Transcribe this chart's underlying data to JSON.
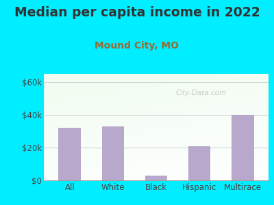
{
  "title": "Median per capita income in 2022",
  "subtitle": "Mound City, MO",
  "categories": [
    "All",
    "White",
    "Black",
    "Hispanic",
    "Multirace"
  ],
  "values": [
    32000,
    33000,
    3000,
    21000,
    40000
  ],
  "bar_color": "#b8a8cc",
  "title_color": "#333333",
  "subtitle_color": "#9b6b2f",
  "background_outer": "#00eeff",
  "ylim": [
    0,
    65000
  ],
  "yticks": [
    0,
    20000,
    40000,
    60000
  ],
  "ytick_labels": [
    "$0",
    "$20k",
    "$40k",
    "$60k"
  ],
  "watermark": "City-Data.com",
  "title_fontsize": 13.5,
  "subtitle_fontsize": 10,
  "tick_fontsize": 8.5
}
